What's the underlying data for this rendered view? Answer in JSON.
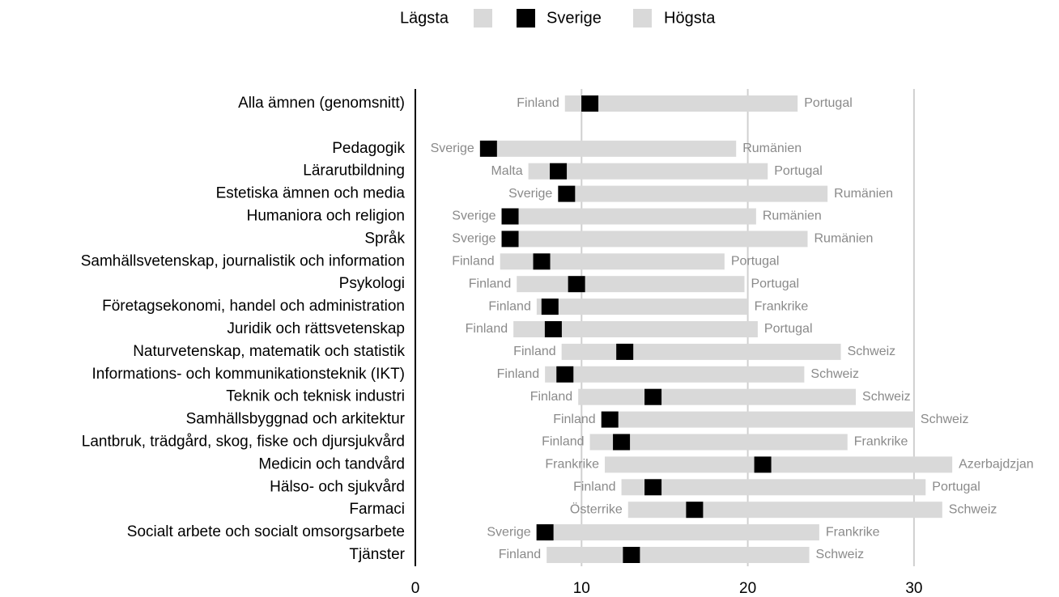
{
  "chart_data": {
    "type": "range",
    "categories": [
      "Alla ämnen (genomsnitt)",
      null,
      "Pedagogik",
      "Lärarutbildning",
      "Estetiska ämnen och media",
      "Humaniora och religion",
      "Språk",
      "Samhällsvetenskap, journalistik och information",
      "Psykologi",
      "Företagsekonomi, handel och administration",
      "Juridik och rättsvetenskap",
      "Naturvetenskap, matematik och statistik",
      "Informations- och kommunikationsteknik (IKT)",
      "Teknik och teknisk industri",
      "Samhällsbyggnad och arkitektur",
      "Lantbruk, trädgård, skog, fiske och djursjukvård",
      "Medicin och tandvård",
      "Hälso- och sjukvård",
      "Farmaci",
      "Socialt arbete och socialt omsorgsarbete",
      "Tjänster"
    ],
    "series": [
      {
        "name": "Lägsta",
        "color": "#d9d9d9",
        "values": [
          9.0,
          null,
          4.4,
          6.8,
          9.1,
          5.7,
          5.7,
          5.1,
          6.1,
          7.3,
          5.9,
          8.8,
          7.8,
          9.8,
          11.3,
          10.5,
          11.4,
          12.4,
          12.8,
          7.8,
          7.9
        ],
        "value_labels": [
          "Finland",
          null,
          "Sverige",
          "Malta",
          "Sverige",
          "Sverige",
          "Sverige",
          "Finland",
          "Finland",
          "Finland",
          "Finland",
          "Finland",
          "Finland",
          "Finland",
          "Finland",
          "Finland",
          "Frankrike",
          "Finland",
          "Österrike",
          "Sverige",
          "Finland"
        ]
      },
      {
        "name": "Sverige",
        "color": "#000000",
        "values": [
          10.5,
          null,
          4.4,
          8.6,
          9.1,
          5.7,
          5.7,
          7.6,
          9.7,
          8.1,
          8.3,
          12.6,
          9.0,
          14.3,
          11.7,
          12.4,
          20.9,
          14.3,
          16.8,
          7.8,
          13.0
        ]
      },
      {
        "name": "Högsta",
        "color": "#d9d9d9",
        "values": [
          23.0,
          null,
          19.3,
          21.2,
          24.8,
          20.5,
          23.6,
          18.6,
          19.8,
          20.0,
          20.6,
          25.6,
          23.4,
          26.5,
          30.0,
          26.0,
          32.3,
          30.7,
          31.7,
          24.3,
          23.7
        ],
        "value_labels": [
          "Portugal",
          null,
          "Rumänien",
          "Portugal",
          "Rumänien",
          "Rumänien",
          "Rumänien",
          "Portugal",
          "Portugal",
          "Frankrike",
          "Portugal",
          "Schweiz",
          "Schweiz",
          "Schweiz",
          "Schweiz",
          "Frankrike",
          "Azerbajdzjan",
          "Portugal",
          "Schweiz",
          "Frankrike",
          "Schweiz"
        ]
      }
    ],
    "xlim": [
      0,
      35
    ],
    "xticks": [
      0,
      10,
      20,
      30
    ],
    "grid": true,
    "legend": "top"
  }
}
